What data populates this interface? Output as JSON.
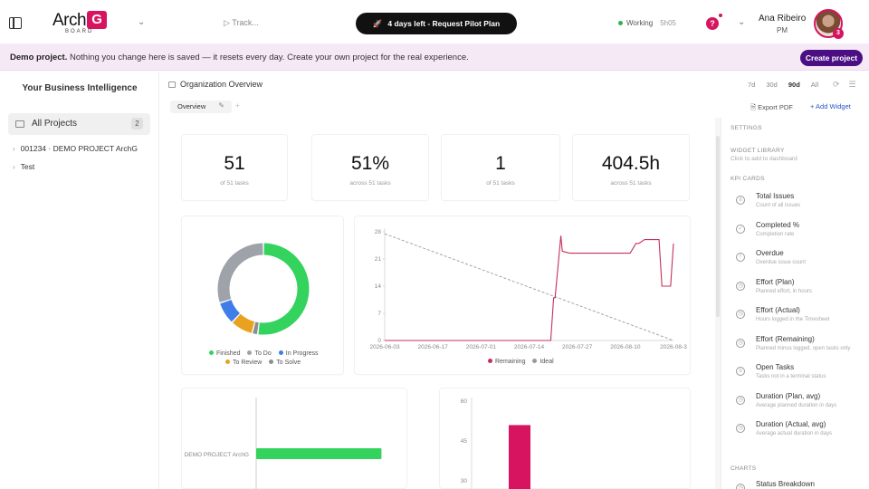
{
  "topbar": {
    "logo_text": "Arch",
    "logo_letter": "G",
    "logo_sub": "BOARD",
    "track_label": "▷ Track...",
    "pilot_button": "4 days left - Request Pilot Plan",
    "status_label": "Working",
    "status_timer": "5h05",
    "help_label": "?",
    "user_name": "Ana Ribeiro",
    "user_role": "PM",
    "avatar_badge": "3"
  },
  "banner": {
    "bold": "Demo project.",
    "text": " Nothing you change here is saved — it resets every day. Create your own project for the real experience.",
    "create_button": "Create project"
  },
  "sidebar": {
    "title": "Your Business Intelligence",
    "all_projects": "All Projects",
    "all_projects_count": "2",
    "projects": [
      "001234 · DEMO PROJECT ArchG",
      "Test"
    ]
  },
  "main": {
    "title": "Organization Overview",
    "ranges": [
      "7d",
      "30d",
      "90d",
      "All"
    ],
    "active_range": "90d",
    "tab": "Overview",
    "tab_add": "+",
    "export": "Export PDF",
    "add_widget": "+ Add Widget"
  },
  "kpis": [
    {
      "value": "51",
      "sub": "of 51 tasks"
    },
    {
      "value": "51%",
      "sub": "across 51 tasks"
    },
    {
      "value": "1",
      "sub": "of 51 tasks"
    },
    {
      "value": "404.5h",
      "sub": "across 51 tasks"
    }
  ],
  "colors": {
    "brand": "#d6145f",
    "finished": "#34d35e",
    "todo": "#9ea3aa",
    "in_progress": "#3f7ee8",
    "to_review": "#e9a21f",
    "to_solve": "#8a8f96",
    "remaining": "#c4305c",
    "ideal": "#9a9a9a"
  },
  "chart_data": [
    {
      "type": "pie",
      "labels": [
        "Finished",
        "To Do",
        "In Progress",
        "To Review",
        "To Solve"
      ],
      "values": [
        26,
        15,
        4,
        4,
        1
      ]
    },
    {
      "type": "line",
      "x_ticks": [
        "2026-06-03",
        "2026-06-17",
        "2026-07-01",
        "2026-07-14",
        "2026-07-27",
        "2026-08-10",
        "2026-08-3"
      ],
      "y_ticks": [
        "28",
        "21",
        "14",
        "7",
        "0"
      ],
      "ylim": [
        0,
        28
      ],
      "series": [
        {
          "name": "Remaining",
          "x": [
            0,
            0.1,
            0.2,
            0.3,
            0.4,
            0.55,
            0.575,
            0.585,
            0.59,
            0.61,
            0.615,
            0.64,
            0.7,
            0.82,
            0.85,
            0.87,
            0.88,
            0.9,
            0.92,
            0.95,
            0.96,
            0.97,
            0.98,
            0.99,
            1.0
          ],
          "values": [
            0,
            0,
            0,
            0,
            0,
            0,
            0,
            11,
            11,
            27,
            23,
            22.5,
            22.5,
            22.5,
            22.5,
            25,
            25,
            26,
            26,
            26,
            14,
            14,
            14,
            14,
            25
          ]
        },
        {
          "name": "Ideal",
          "x": [
            0,
            1
          ],
          "values": [
            27.5,
            0
          ]
        }
      ]
    },
    {
      "type": "bar",
      "orientation": "horizontal",
      "categories": [
        "DEMO PROJECT ArchG"
      ],
      "values": [
        51
      ]
    },
    {
      "type": "bar",
      "y_ticks": [
        "60",
        "45",
        "30"
      ],
      "ylim": [
        0,
        60
      ],
      "values": [
        51
      ]
    }
  ],
  "settings": {
    "settings_head": "SETTINGS",
    "library_head": "WIDGET LIBRARY",
    "library_note": "Click to add to dashboard",
    "kpi_head": "KPI CARDS",
    "charts_head": "CHARTS",
    "widgets": [
      {
        "icon": "list-icon",
        "title": "Total Issues",
        "desc": "Count of all issues"
      },
      {
        "icon": "check-circle-icon",
        "title": "Completed %",
        "desc": "Completion rate"
      },
      {
        "icon": "warning-icon",
        "title": "Overdue",
        "desc": "Overdue issue count"
      },
      {
        "icon": "clock-icon",
        "title": "Effort (Plan)",
        "desc": "Planned effort, in hours"
      },
      {
        "icon": "clock-icon",
        "title": "Effort (Actual)",
        "desc": "Hours logged in the Timesheet"
      },
      {
        "icon": "clock-icon",
        "title": "Effort (Remaining)",
        "desc": "Planned minus logged, open tasks only"
      },
      {
        "icon": "list-icon",
        "title": "Open Tasks",
        "desc": "Tasks not in a terminal status"
      },
      {
        "icon": "clock-icon",
        "title": "Duration (Plan, avg)",
        "desc": "Average planned duration in days"
      },
      {
        "icon": "clock-icon",
        "title": "Duration (Actual, avg)",
        "desc": "Average actual duration in days"
      }
    ],
    "chart_widgets": [
      {
        "icon": "clock-icon",
        "title": "Status Breakdown"
      }
    ]
  }
}
